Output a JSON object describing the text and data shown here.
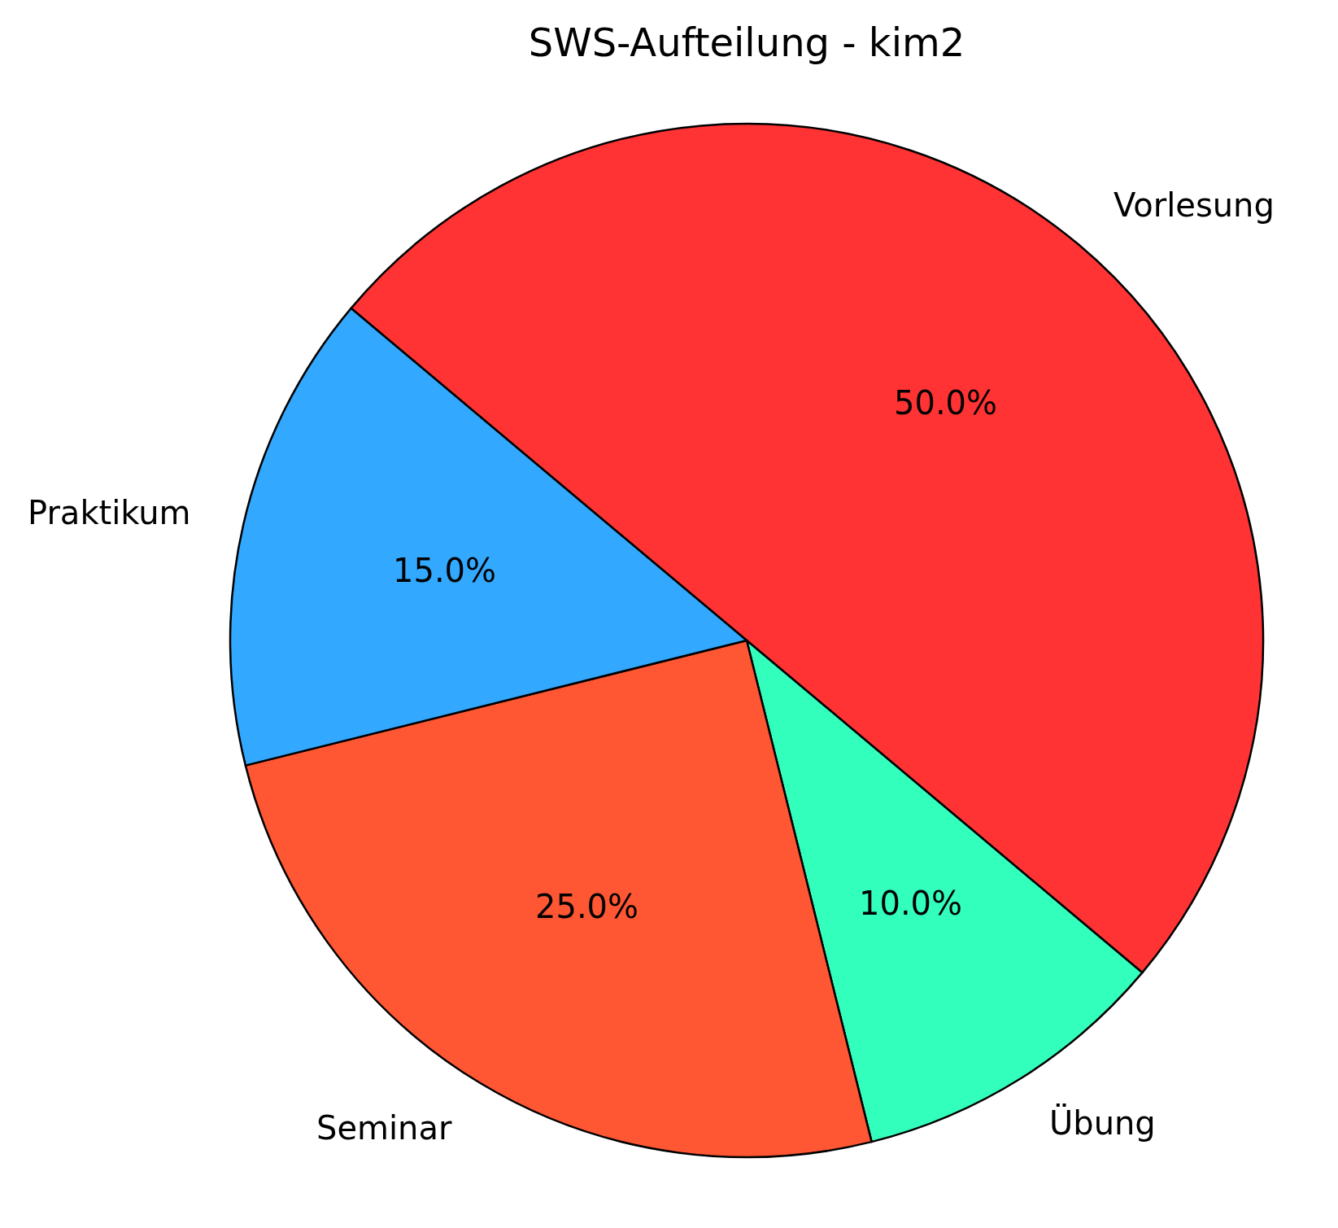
{
  "chart_data": {
    "type": "pie",
    "title": "SWS-Aufteilung - kim2",
    "categories": [
      "Vorlesung",
      "Übung",
      "Seminar",
      "Praktikum"
    ],
    "values": [
      50,
      10,
      25,
      15
    ],
    "colors": [
      "#ff3333",
      "#33ffbd",
      "#ff5733",
      "#33a8ff"
    ],
    "value_labels": [
      "50.0%",
      "10.0%",
      "25.0%",
      "15.0%"
    ]
  }
}
